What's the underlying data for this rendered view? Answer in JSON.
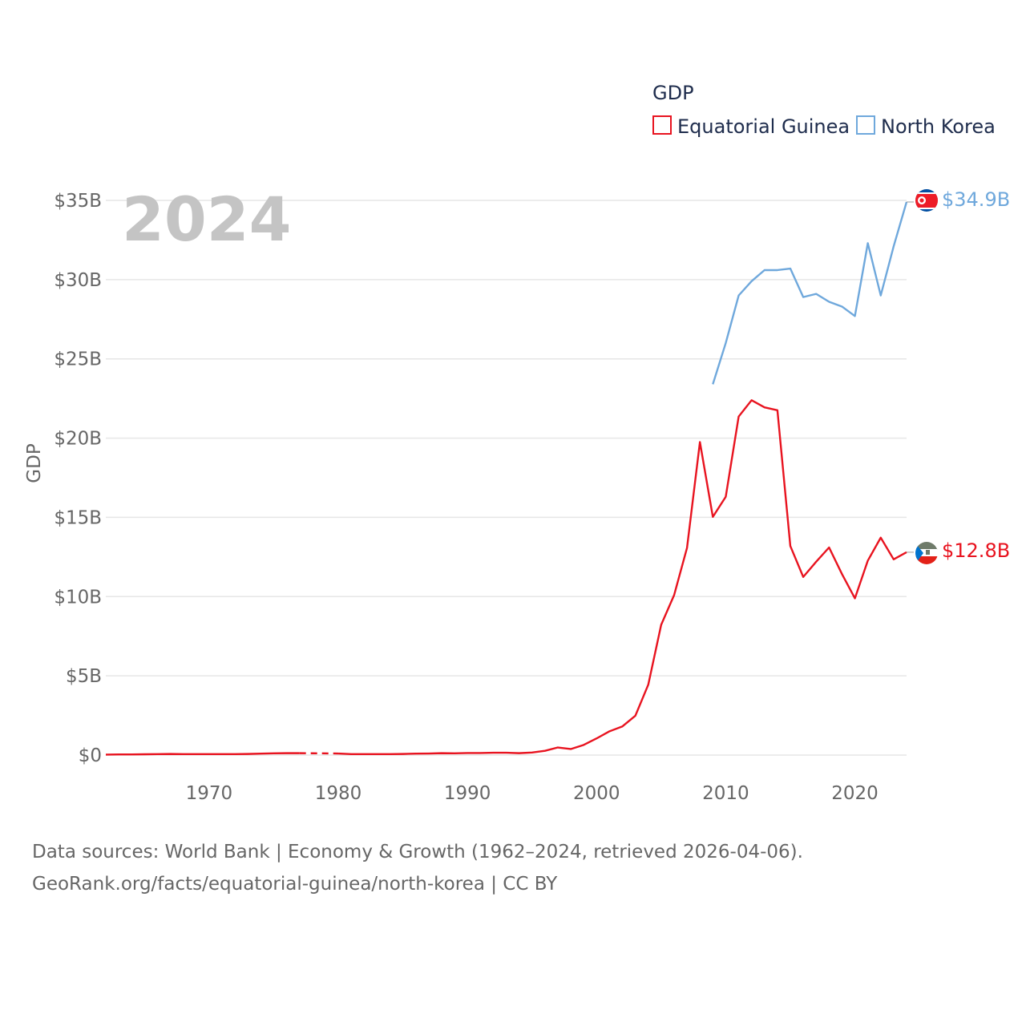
{
  "chart_data": {
    "type": "line",
    "year_label": "2024",
    "ylabel": "GDP",
    "xlabel": "",
    "xlim": [
      1962,
      2024
    ],
    "ylim": [
      0,
      35
    ],
    "x_ticks": [
      "1970",
      "1980",
      "1990",
      "2000",
      "2010",
      "2020"
    ],
    "y_ticks": [
      "$0",
      "$5B",
      "$10B",
      "$15B",
      "$20B",
      "$25B",
      "$30B",
      "$35B"
    ],
    "legend_title": "GDP",
    "units": "billion USD",
    "series": [
      {
        "name": "Equatorial Guinea",
        "color": "#e8131f",
        "end_label": "$12.8B",
        "gap": [
          1977,
          1980
        ],
        "x": [
          1962,
          1963,
          1964,
          1965,
          1966,
          1967,
          1968,
          1969,
          1970,
          1971,
          1972,
          1973,
          1974,
          1975,
          1976,
          1977,
          1980,
          1981,
          1982,
          1983,
          1984,
          1985,
          1986,
          1987,
          1988,
          1989,
          1990,
          1991,
          1992,
          1993,
          1994,
          1995,
          1996,
          1997,
          1998,
          1999,
          2000,
          2001,
          2002,
          2003,
          2004,
          2005,
          2006,
          2007,
          2008,
          2009,
          2010,
          2011,
          2012,
          2013,
          2014,
          2015,
          2016,
          2017,
          2018,
          2019,
          2020,
          2021,
          2022,
          2023,
          2024
        ],
        "values": [
          0.03,
          0.04,
          0.04,
          0.05,
          0.06,
          0.07,
          0.06,
          0.06,
          0.06,
          0.06,
          0.06,
          0.07,
          0.09,
          0.11,
          0.12,
          0.12,
          0.1,
          0.06,
          0.06,
          0.06,
          0.06,
          0.07,
          0.09,
          0.1,
          0.12,
          0.11,
          0.13,
          0.13,
          0.15,
          0.15,
          0.12,
          0.16,
          0.27,
          0.48,
          0.38,
          0.64,
          1.05,
          1.5,
          1.81,
          2.48,
          4.44,
          8.22,
          10.09,
          13.07,
          19.75,
          15.03,
          16.3,
          21.36,
          22.39,
          21.94,
          21.76,
          13.19,
          11.24,
          12.2,
          13.1,
          11.42,
          9.89,
          12.27,
          13.72,
          12.35,
          12.8
        ]
      },
      {
        "name": "North Korea",
        "color": "#6fa8dc",
        "end_label": "$34.9B",
        "x": [
          2009,
          2010,
          2011,
          2012,
          2013,
          2014,
          2015,
          2016,
          2017,
          2018,
          2019,
          2020,
          2021,
          2022,
          2023,
          2024
        ],
        "values": [
          23.4,
          26.0,
          29.0,
          29.9,
          30.6,
          30.6,
          30.7,
          28.9,
          29.1,
          28.6,
          28.3,
          27.7,
          32.3,
          29.0,
          32.1,
          34.9
        ]
      }
    ]
  },
  "source_lines": [
    "Data sources: World Bank | Economy & Growth (1962–2024, retrieved 2026-04-06).",
    "GeoRank.org/facts/equatorial-guinea/north-korea | CC BY"
  ]
}
